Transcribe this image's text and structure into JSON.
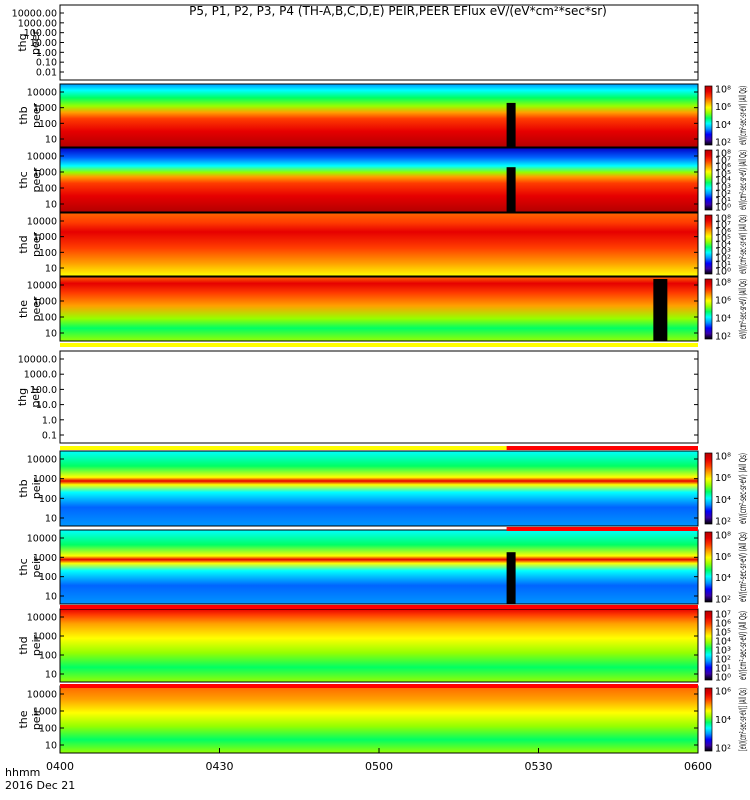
{
  "chart_data": {
    "type": "heatmap",
    "title": "P5, P1, P2, P3, P4 (TH-A,B,C,D,E) PEIR,PEER EFlux eV/(eV*cm²*sec*sr)",
    "x_axis": {
      "tick_labels": [
        "0400",
        "0430",
        "0500",
        "0530",
        "0600"
      ],
      "corner_label": "hhmm",
      "date_label": "2016 Dec 21"
    },
    "data_gap_time": "0524",
    "panels": [
      {
        "id": "thg-peer",
        "label": [
          "thg",
          "peer"
        ],
        "status": "empty",
        "scale": "log",
        "yticks": [
          "10000.00",
          "1000.00",
          "100.00",
          "10.00",
          "1.00",
          "0.10",
          "0.01"
        ],
        "colorbar": null
      },
      {
        "id": "thb-peer",
        "label": [
          "thb",
          "peer"
        ],
        "status": "data",
        "scale": "log",
        "yticks": [
          "10000",
          "1000",
          "100",
          "10"
        ],
        "colorbar": {
          "ticks": [
            "10⁸",
            "10⁶",
            "10⁴",
            "10²"
          ],
          "label": "eV/(cm²-sec-sr-eV) (All Qs)"
        }
      },
      {
        "id": "thc-peer",
        "label": [
          "thc",
          "peer"
        ],
        "status": "data",
        "scale": "log",
        "yticks": [
          "10000",
          "1000",
          "100",
          "10"
        ],
        "colorbar": {
          "ticks": [
            "10⁸",
            "10⁷",
            "10⁶",
            "10⁵",
            "10⁴",
            "10³",
            "10²",
            "10¹",
            "10⁰"
          ],
          "label": "eV/(cm²-sec-sr-eV) (All Qs)"
        }
      },
      {
        "id": "thd-peer",
        "label": [
          "thd",
          "peer"
        ],
        "status": "data",
        "scale": "log",
        "yticks": [
          "10000",
          "1000",
          "100",
          "10"
        ],
        "colorbar": {
          "ticks": [
            "10⁸",
            "10⁷",
            "10⁶",
            "10⁵",
            "10⁴",
            "10³",
            "10²",
            "10¹",
            "10⁰"
          ],
          "label": "eV/(cm²-sec-sr-eV) (All Qs)"
        }
      },
      {
        "id": "the-peer",
        "label": [
          "the",
          "peer"
        ],
        "status": "data",
        "scale": "log",
        "yticks": [
          "10000",
          "1000",
          "100",
          "10"
        ],
        "colorbar": {
          "ticks": [
            "10⁸",
            "10⁶",
            "10⁴",
            "10²"
          ],
          "label": "eV/(cm²-sec-sr-eV) (All Qs)"
        }
      },
      {
        "id": "thg-peir",
        "label": [
          "thg",
          "peir"
        ],
        "status": "empty",
        "scale": "log",
        "yticks": [
          "10000.0",
          "1000.0",
          "100.0",
          "10.0",
          "1.0",
          "0.1"
        ],
        "colorbar": null
      },
      {
        "id": "thb-peir",
        "label": [
          "thb",
          "peir"
        ],
        "status": "data",
        "scale": "log",
        "yticks": [
          "10000",
          "1000",
          "100",
          "10"
        ],
        "colorbar": {
          "ticks": [
            "10⁸",
            "10⁶",
            "10⁴",
            "10²"
          ],
          "label": "eV/(cm²-sec-sr-eV) (All Qs)"
        }
      },
      {
        "id": "thc-peir",
        "label": [
          "thc",
          "peir"
        ],
        "status": "data",
        "scale": "log",
        "yticks": [
          "10000",
          "1000",
          "100",
          "10"
        ],
        "colorbar": {
          "ticks": [
            "10⁸",
            "10⁶",
            "10⁴",
            "10²"
          ],
          "label": "eV/(cm²-sec-sr-eV) (All Qs)"
        }
      },
      {
        "id": "thd-peir",
        "label": [
          "thd",
          "peir"
        ],
        "status": "data",
        "scale": "log",
        "yticks": [
          "10000",
          "1000",
          "100",
          "10"
        ],
        "colorbar": {
          "ticks": [
            "10⁷",
            "10⁶",
            "10⁵",
            "10⁴",
            "10³",
            "10²",
            "10¹",
            "10⁰"
          ],
          "label": "eV/(cm²-sec-sr-eV) (All Qs)"
        }
      },
      {
        "id": "the-peir",
        "label": [
          "the",
          "peir"
        ],
        "status": "data",
        "scale": "log",
        "yticks": [
          "10000",
          "1000",
          "100",
          "10"
        ],
        "colorbar": {
          "ticks": [
            "10⁶",
            "10⁴",
            "10²"
          ],
          "label": "[eV/(cm²-sec-sr-eV)] (All Qs)"
        }
      }
    ],
    "colors": {
      "colormap": [
        "#000000",
        "#3a00a8",
        "#0000ff",
        "#0096ff",
        "#00ffff",
        "#00ff64",
        "#96ff00",
        "#ffff00",
        "#ffa000",
        "#ff3c00",
        "#e60000",
        "#b40000"
      ],
      "axis": "#000000",
      "background": "#ffffff",
      "status_bar_red": "#ff0000",
      "status_bar_yellow": "#ffff00"
    }
  }
}
